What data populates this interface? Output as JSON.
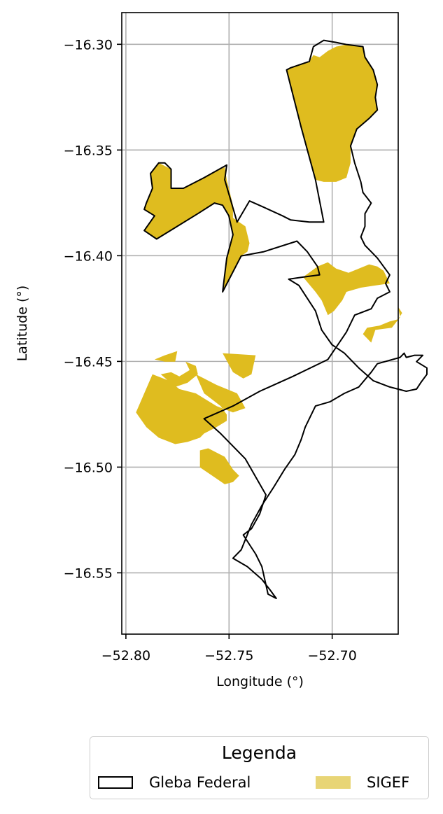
{
  "chart_data": {
    "type": "map",
    "xlabel": "Longitude (°)",
    "ylabel": "Latitude (°)",
    "xlim": [
      -52.802,
      -52.668
    ],
    "ylim": [
      -16.579,
      -16.285
    ],
    "x_ticks": [
      -52.8,
      -52.75,
      -52.7
    ],
    "x_tick_labels": [
      "−52.80",
      "−52.75",
      "−52.70"
    ],
    "y_ticks": [
      -16.3,
      -16.35,
      -16.4,
      -16.45,
      -16.5,
      -16.55
    ],
    "y_tick_labels": [
      "−16.30",
      "−16.35",
      "−16.40",
      "−16.45",
      "−16.50",
      "−16.55"
    ],
    "grid": true,
    "colors": {
      "sigef_fill": "#dfbc1f",
      "sigef_legend": "#e8d576",
      "gleba_outline": "#000000",
      "grid": "#b0b0b0"
    },
    "gleba_federal": [
      [
        [
          -52.7271,
          -16.5621
        ],
        [
          -52.7311,
          -16.5601
        ],
        [
          -52.7341,
          -16.5471
        ],
        [
          -52.7371,
          -16.5411
        ],
        [
          -52.7391,
          -16.5381
        ],
        [
          -52.7431,
          -16.5321
        ],
        [
          -52.7391,
          -16.5291
        ],
        [
          -52.7351,
          -16.5221
        ],
        [
          -52.7321,
          -16.5131
        ],
        [
          -52.7421,
          -16.4961
        ],
        [
          -52.7541,
          -16.4841
        ],
        [
          -52.7621,
          -16.4771
        ],
        [
          -52.7481,
          -16.4711
        ],
        [
          -52.7351,
          -16.4641
        ],
        [
          -52.7191,
          -16.4571
        ],
        [
          -52.7021,
          -16.4491
        ],
        [
          -52.6931,
          -16.4361
        ],
        [
          -52.6891,
          -16.4281
        ],
        [
          -52.6811,
          -16.4251
        ],
        [
          -52.6781,
          -16.4201
        ],
        [
          -52.6721,
          -16.4171
        ],
        [
          -52.6741,
          -16.4131
        ],
        [
          -52.6721,
          -16.4091
        ],
        [
          -52.6751,
          -16.4051
        ],
        [
          -52.6781,
          -16.4011
        ],
        [
          -52.6811,
          -16.3981
        ],
        [
          -52.6841,
          -16.3951
        ],
        [
          -52.6861,
          -16.3911
        ],
        [
          -52.6841,
          -16.3861
        ],
        [
          -52.6841,
          -16.3801
        ],
        [
          -52.6811,
          -16.3751
        ],
        [
          -52.6851,
          -16.3701
        ],
        [
          -52.6861,
          -16.3651
        ],
        [
          -52.6891,
          -16.3561
        ],
        [
          -52.6911,
          -16.3481
        ],
        [
          -52.6881,
          -16.3401
        ],
        [
          -52.6821,
          -16.3351
        ],
        [
          -52.6781,
          -16.3311
        ],
        [
          -52.6791,
          -16.3251
        ],
        [
          -52.6781,
          -16.3191
        ],
        [
          -52.6801,
          -16.3121
        ],
        [
          -52.6841,
          -16.3061
        ],
        [
          -52.6851,
          -16.3011
        ],
        [
          -52.6931,
          -16.3001
        ],
        [
          -52.6981,
          -16.2991
        ],
        [
          -52.7041,
          -16.2981
        ],
        [
          -52.7091,
          -16.3011
        ],
        [
          -52.7111,
          -16.3081
        ],
        [
          -52.7201,
          -16.3111
        ],
        [
          -52.7221,
          -16.3121
        ],
        [
          -52.7151,
          -16.3391
        ],
        [
          -52.7081,
          -16.3641
        ],
        [
          -52.7041,
          -16.3841
        ],
        [
          -52.7111,
          -16.3841
        ],
        [
          -52.7201,
          -16.3831
        ],
        [
          -52.7241,
          -16.3811
        ],
        [
          -52.7331,
          -16.3771
        ],
        [
          -52.7401,
          -16.3741
        ],
        [
          -52.7461,
          -16.3841
        ],
        [
          -52.7521,
          -16.3641
        ],
        [
          -52.7511,
          -16.3571
        ],
        [
          -52.7621,
          -16.3631
        ],
        [
          -52.7721,
          -16.3681
        ],
        [
          -52.7781,
          -16.3681
        ],
        [
          -52.7781,
          -16.3591
        ],
        [
          -52.7811,
          -16.3561
        ],
        [
          -52.7841,
          -16.3561
        ],
        [
          -52.7881,
          -16.3611
        ],
        [
          -52.7871,
          -16.3681
        ],
        [
          -52.7901,
          -16.3751
        ],
        [
          -52.7911,
          -16.3781
        ],
        [
          -52.7861,
          -16.3811
        ],
        [
          -52.7911,
          -16.3881
        ],
        [
          -52.7851,
          -16.3921
        ],
        [
          -52.7751,
          -16.3861
        ],
        [
          -52.7651,
          -16.3801
        ],
        [
          -52.7571,
          -16.3751
        ],
        [
          -52.7531,
          -16.3761
        ],
        [
          -52.7501,
          -16.3811
        ],
        [
          -52.7481,
          -16.3901
        ],
        [
          -52.7511,
          -16.4011
        ],
        [
          -52.7531,
          -16.4171
        ],
        [
          -52.7441,
          -16.4001
        ],
        [
          -52.7331,
          -16.3981
        ],
        [
          -52.7171,
          -16.3931
        ],
        [
          -52.7121,
          -16.3981
        ],
        [
          -52.7071,
          -16.4051
        ],
        [
          -52.7061,
          -16.4091
        ],
        [
          -52.7141,
          -16.4101
        ],
        [
          -52.7211,
          -16.4111
        ],
        [
          -52.7161,
          -16.4141
        ],
        [
          -52.7121,
          -16.4201
        ],
        [
          -52.7081,
          -16.4261
        ],
        [
          -52.7051,
          -16.4351
        ],
        [
          -52.7001,
          -16.4421
        ],
        [
          -52.6941,
          -16.4461
        ],
        [
          -52.6871,
          -16.4531
        ],
        [
          -52.6801,
          -16.4591
        ],
        [
          -52.6721,
          -16.4621
        ],
        [
          -52.6641,
          -16.4641
        ],
        [
          -52.6591,
          -16.4631
        ],
        [
          -52.6571,
          -16.4601
        ],
        [
          -52.6541,
          -16.4561
        ],
        [
          -52.6541,
          -16.4531
        ],
        [
          -52.6591,
          -16.4501
        ],
        [
          -52.6561,
          -16.4471
        ],
        [
          -52.6601,
          -16.4471
        ],
        [
          -52.6641,
          -16.4481
        ],
        [
          -52.6651,
          -16.4461
        ],
        [
          -52.6671,
          -16.4481
        ],
        [
          -52.6781,
          -16.4511
        ],
        [
          -52.6811,
          -16.4551
        ],
        [
          -52.6871,
          -16.4621
        ],
        [
          -52.6941,
          -16.4651
        ],
        [
          -52.7011,
          -16.4691
        ],
        [
          -52.7081,
          -16.4711
        ],
        [
          -52.7131,
          -16.4811
        ],
        [
          -52.7151,
          -16.4871
        ],
        [
          -52.7181,
          -16.4941
        ],
        [
          -52.7231,
          -16.5011
        ],
        [
          -52.7281,
          -16.5091
        ],
        [
          -52.7341,
          -16.5181
        ],
        [
          -52.7391,
          -16.5271
        ],
        [
          -52.7441,
          -16.5391
        ],
        [
          -52.7481,
          -16.5431
        ],
        [
          -52.7411,
          -16.5471
        ],
        [
          -52.7341,
          -16.5531
        ],
        [
          -52.7301,
          -16.5581
        ],
        [
          -52.7271,
          -16.5621
        ]
      ]
    ],
    "sigef": [
      [
        [
          -52.7221,
          -16.3121
        ],
        [
          -52.7151,
          -16.3391
        ],
        [
          -52.7081,
          -16.3641
        ],
        [
          -52.7041,
          -16.3651
        ],
        [
          -52.6981,
          -16.3651
        ],
        [
          -52.6931,
          -16.3631
        ],
        [
          -52.6911,
          -16.3561
        ],
        [
          -52.6911,
          -16.3481
        ],
        [
          -52.6881,
          -16.3401
        ],
        [
          -52.6821,
          -16.3351
        ],
        [
          -52.6781,
          -16.3311
        ],
        [
          -52.6791,
          -16.3251
        ],
        [
          -52.6781,
          -16.3191
        ],
        [
          -52.6801,
          -16.3121
        ],
        [
          -52.6841,
          -16.3061
        ],
        [
          -52.6851,
          -16.3011
        ],
        [
          -52.6931,
          -16.3001
        ],
        [
          -52.6981,
          -16.3011
        ],
        [
          -52.7021,
          -16.3031
        ],
        [
          -52.7061,
          -16.3061
        ],
        [
          -52.7091,
          -16.3051
        ],
        [
          -52.7111,
          -16.3081
        ],
        [
          -52.7201,
          -16.3111
        ],
        [
          -52.7221,
          -16.3121
        ]
      ],
      [
        [
          -52.7881,
          -16.3611
        ],
        [
          -52.7841,
          -16.3561
        ],
        [
          -52.7781,
          -16.3591
        ],
        [
          -52.7781,
          -16.3681
        ],
        [
          -52.7721,
          -16.3681
        ],
        [
          -52.7621,
          -16.3631
        ],
        [
          -52.7521,
          -16.3581
        ],
        [
          -52.7511,
          -16.3641
        ],
        [
          -52.7481,
          -16.3761
        ],
        [
          -52.7481,
          -16.3821
        ],
        [
          -52.7421,
          -16.3861
        ],
        [
          -52.7401,
          -16.3941
        ],
        [
          -52.7411,
          -16.3981
        ],
        [
          -52.7441,
          -16.4001
        ],
        [
          -52.7531,
          -16.4171
        ],
        [
          -52.7511,
          -16.4011
        ],
        [
          -52.7481,
          -16.3901
        ],
        [
          -52.7501,
          -16.3811
        ],
        [
          -52.7531,
          -16.3761
        ],
        [
          -52.7571,
          -16.3751
        ],
        [
          -52.7651,
          -16.3801
        ],
        [
          -52.7751,
          -16.3861
        ],
        [
          -52.7851,
          -16.3921
        ],
        [
          -52.7911,
          -16.3881
        ],
        [
          -52.7861,
          -16.3811
        ],
        [
          -52.7911,
          -16.3781
        ],
        [
          -52.7901,
          -16.3751
        ],
        [
          -52.7871,
          -16.3681
        ],
        [
          -52.7881,
          -16.3611
        ]
      ],
      [
        [
          -52.7071,
          -16.4051
        ],
        [
          -52.7021,
          -16.4031
        ],
        [
          -52.6981,
          -16.4061
        ],
        [
          -52.6921,
          -16.4081
        ],
        [
          -52.6871,
          -16.4061
        ],
        [
          -52.6821,
          -16.4041
        ],
        [
          -52.6781,
          -16.4051
        ],
        [
          -52.6751,
          -16.4071
        ],
        [
          -52.6721,
          -16.4131
        ],
        [
          -52.6791,
          -16.4141
        ],
        [
          -52.6861,
          -16.4151
        ],
        [
          -52.6931,
          -16.4171
        ],
        [
          -52.6951,
          -16.4211
        ],
        [
          -52.6991,
          -16.4261
        ],
        [
          -52.7021,
          -16.4281
        ],
        [
          -52.7051,
          -16.4211
        ],
        [
          -52.7081,
          -16.4171
        ],
        [
          -52.7141,
          -16.4101
        ],
        [
          -52.7071,
          -16.4051
        ]
      ],
      [
        [
          -52.6771,
          -16.4331
        ],
        [
          -52.6721,
          -16.4311
        ],
        [
          -52.6681,
          -16.4301
        ],
        [
          -52.6661,
          -16.4271
        ],
        [
          -52.6681,
          -16.4241
        ],
        [
          -52.6671,
          -16.4291
        ],
        [
          -52.6711,
          -16.4341
        ],
        [
          -52.6791,
          -16.4351
        ],
        [
          -52.6811,
          -16.4411
        ],
        [
          -52.6851,
          -16.4371
        ],
        [
          -52.6831,
          -16.4341
        ],
        [
          -52.6771,
          -16.4331
        ]
      ],
      [
        [
          -52.7531,
          -16.4461
        ],
        [
          -52.7371,
          -16.4471
        ],
        [
          -52.7391,
          -16.4561
        ],
        [
          -52.7431,
          -16.4581
        ],
        [
          -52.7481,
          -16.4551
        ],
        [
          -52.7531,
          -16.4461
        ]
      ],
      [
        [
          -52.7811,
          -16.4471
        ],
        [
          -52.7751,
          -16.4451
        ],
        [
          -52.7761,
          -16.4501
        ],
        [
          -52.7811,
          -16.4501
        ],
        [
          -52.7861,
          -16.4491
        ],
        [
          -52.7811,
          -16.4471
        ]
      ],
      [
        [
          -52.7661,
          -16.4561
        ],
        [
          -52.7621,
          -16.4581
        ],
        [
          -52.7561,
          -16.4611
        ],
        [
          -52.7461,
          -16.4651
        ],
        [
          -52.7421,
          -16.4721
        ],
        [
          -52.7481,
          -16.4741
        ],
        [
          -52.7561,
          -16.4711
        ],
        [
          -52.7661,
          -16.4651
        ],
        [
          -52.7741,
          -16.4631
        ],
        [
          -52.7791,
          -16.4591
        ],
        [
          -52.7871,
          -16.4561
        ],
        [
          -52.7951,
          -16.4741
        ],
        [
          -52.7901,
          -16.4811
        ],
        [
          -52.7841,
          -16.4861
        ],
        [
          -52.7761,
          -16.4891
        ],
        [
          -52.7701,
          -16.4881
        ],
        [
          -52.7641,
          -16.4861
        ],
        [
          -52.7621,
          -16.4841
        ],
        [
          -52.7561,
          -16.4811
        ],
        [
          -52.7511,
          -16.4781
        ],
        [
          -52.7511,
          -16.4751
        ],
        [
          -52.7541,
          -16.4711
        ],
        [
          -52.7581,
          -16.4681
        ],
        [
          -52.7621,
          -16.4651
        ],
        [
          -52.7661,
          -16.4561
        ]
      ],
      [
        [
          -52.7831,
          -16.4561
        ],
        [
          -52.7781,
          -16.4551
        ],
        [
          -52.7741,
          -16.4571
        ],
        [
          -52.7691,
          -16.4541
        ],
        [
          -52.7711,
          -16.4501
        ],
        [
          -52.7661,
          -16.4521
        ],
        [
          -52.7651,
          -16.4561
        ],
        [
          -52.7701,
          -16.4601
        ],
        [
          -52.7761,
          -16.4621
        ],
        [
          -52.7831,
          -16.4561
        ]
      ],
      [
        [
          -52.7641,
          -16.4921
        ],
        [
          -52.7601,
          -16.4911
        ],
        [
          -52.7521,
          -16.4951
        ],
        [
          -52.7481,
          -16.5011
        ],
        [
          -52.7451,
          -16.5041
        ],
        [
          -52.7481,
          -16.5071
        ],
        [
          -52.7521,
          -16.5081
        ],
        [
          -52.7581,
          -16.5041
        ],
        [
          -52.7641,
          -16.5001
        ],
        [
          -52.7641,
          -16.4921
        ]
      ]
    ]
  },
  "legend": {
    "title": "Legenda",
    "items": [
      {
        "label": "Gleba Federal",
        "style": "outline",
        "color": "#000000"
      },
      {
        "label": "SIGEF",
        "style": "fill",
        "color": "#e8d576"
      }
    ]
  }
}
